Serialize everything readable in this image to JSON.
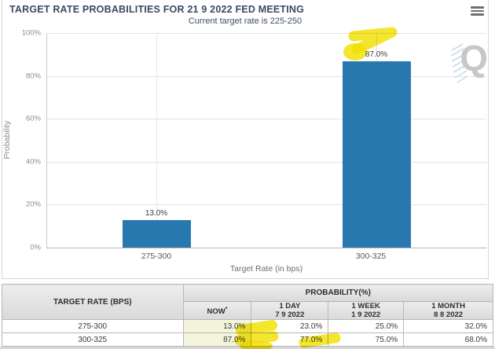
{
  "chart_data": {
    "type": "bar",
    "title": "TARGET RATE PROBABILITIES FOR 21 9 2022 FED MEETING",
    "subtitle": "Current target rate is 225-250",
    "categories": [
      "275-300",
      "300-325"
    ],
    "values": [
      13.0,
      87.0
    ],
    "bar_labels": [
      "13.0%",
      "87.0%"
    ],
    "xlabel": "Target Rate (in bps)",
    "ylabel": "Probability",
    "ylim": [
      0,
      100
    ],
    "yticks": [
      "0%",
      "20%",
      "40%",
      "60%",
      "80%",
      "100%"
    ],
    "grid": true,
    "legend": false,
    "bar_color": "#2878b0"
  },
  "icons": {
    "menu": "hamburger-menu",
    "watermark_letter": "Q"
  },
  "table": {
    "col1_header": "TARGET RATE (BPS)",
    "group_header": "PROBABILITY(%)",
    "columns": [
      {
        "label": "NOW",
        "sup": "*",
        "date": ""
      },
      {
        "label": "1 DAY",
        "sup": "",
        "date": "7 9 2022"
      },
      {
        "label": "1 WEEK",
        "sup": "",
        "date": "1 9 2022"
      },
      {
        "label": "1 MONTH",
        "sup": "",
        "date": "8 8 2022"
      }
    ],
    "rows": [
      {
        "rate": "275-300",
        "now": "13.0%",
        "day": "23.0%",
        "week": "25.0%",
        "month": "32.0%"
      },
      {
        "rate": "300-325",
        "now": "87.0%",
        "day": "77.0%",
        "week": "75.0%",
        "month": "68.0%"
      }
    ]
  },
  "annotations": {
    "highlight_color": "#f2e000",
    "highlighted_values": [
      "87.0% chart label",
      "23.0% (1 DAY)",
      "77.0% (1 DAY)",
      "75.0% (1 WEEK)"
    ]
  }
}
